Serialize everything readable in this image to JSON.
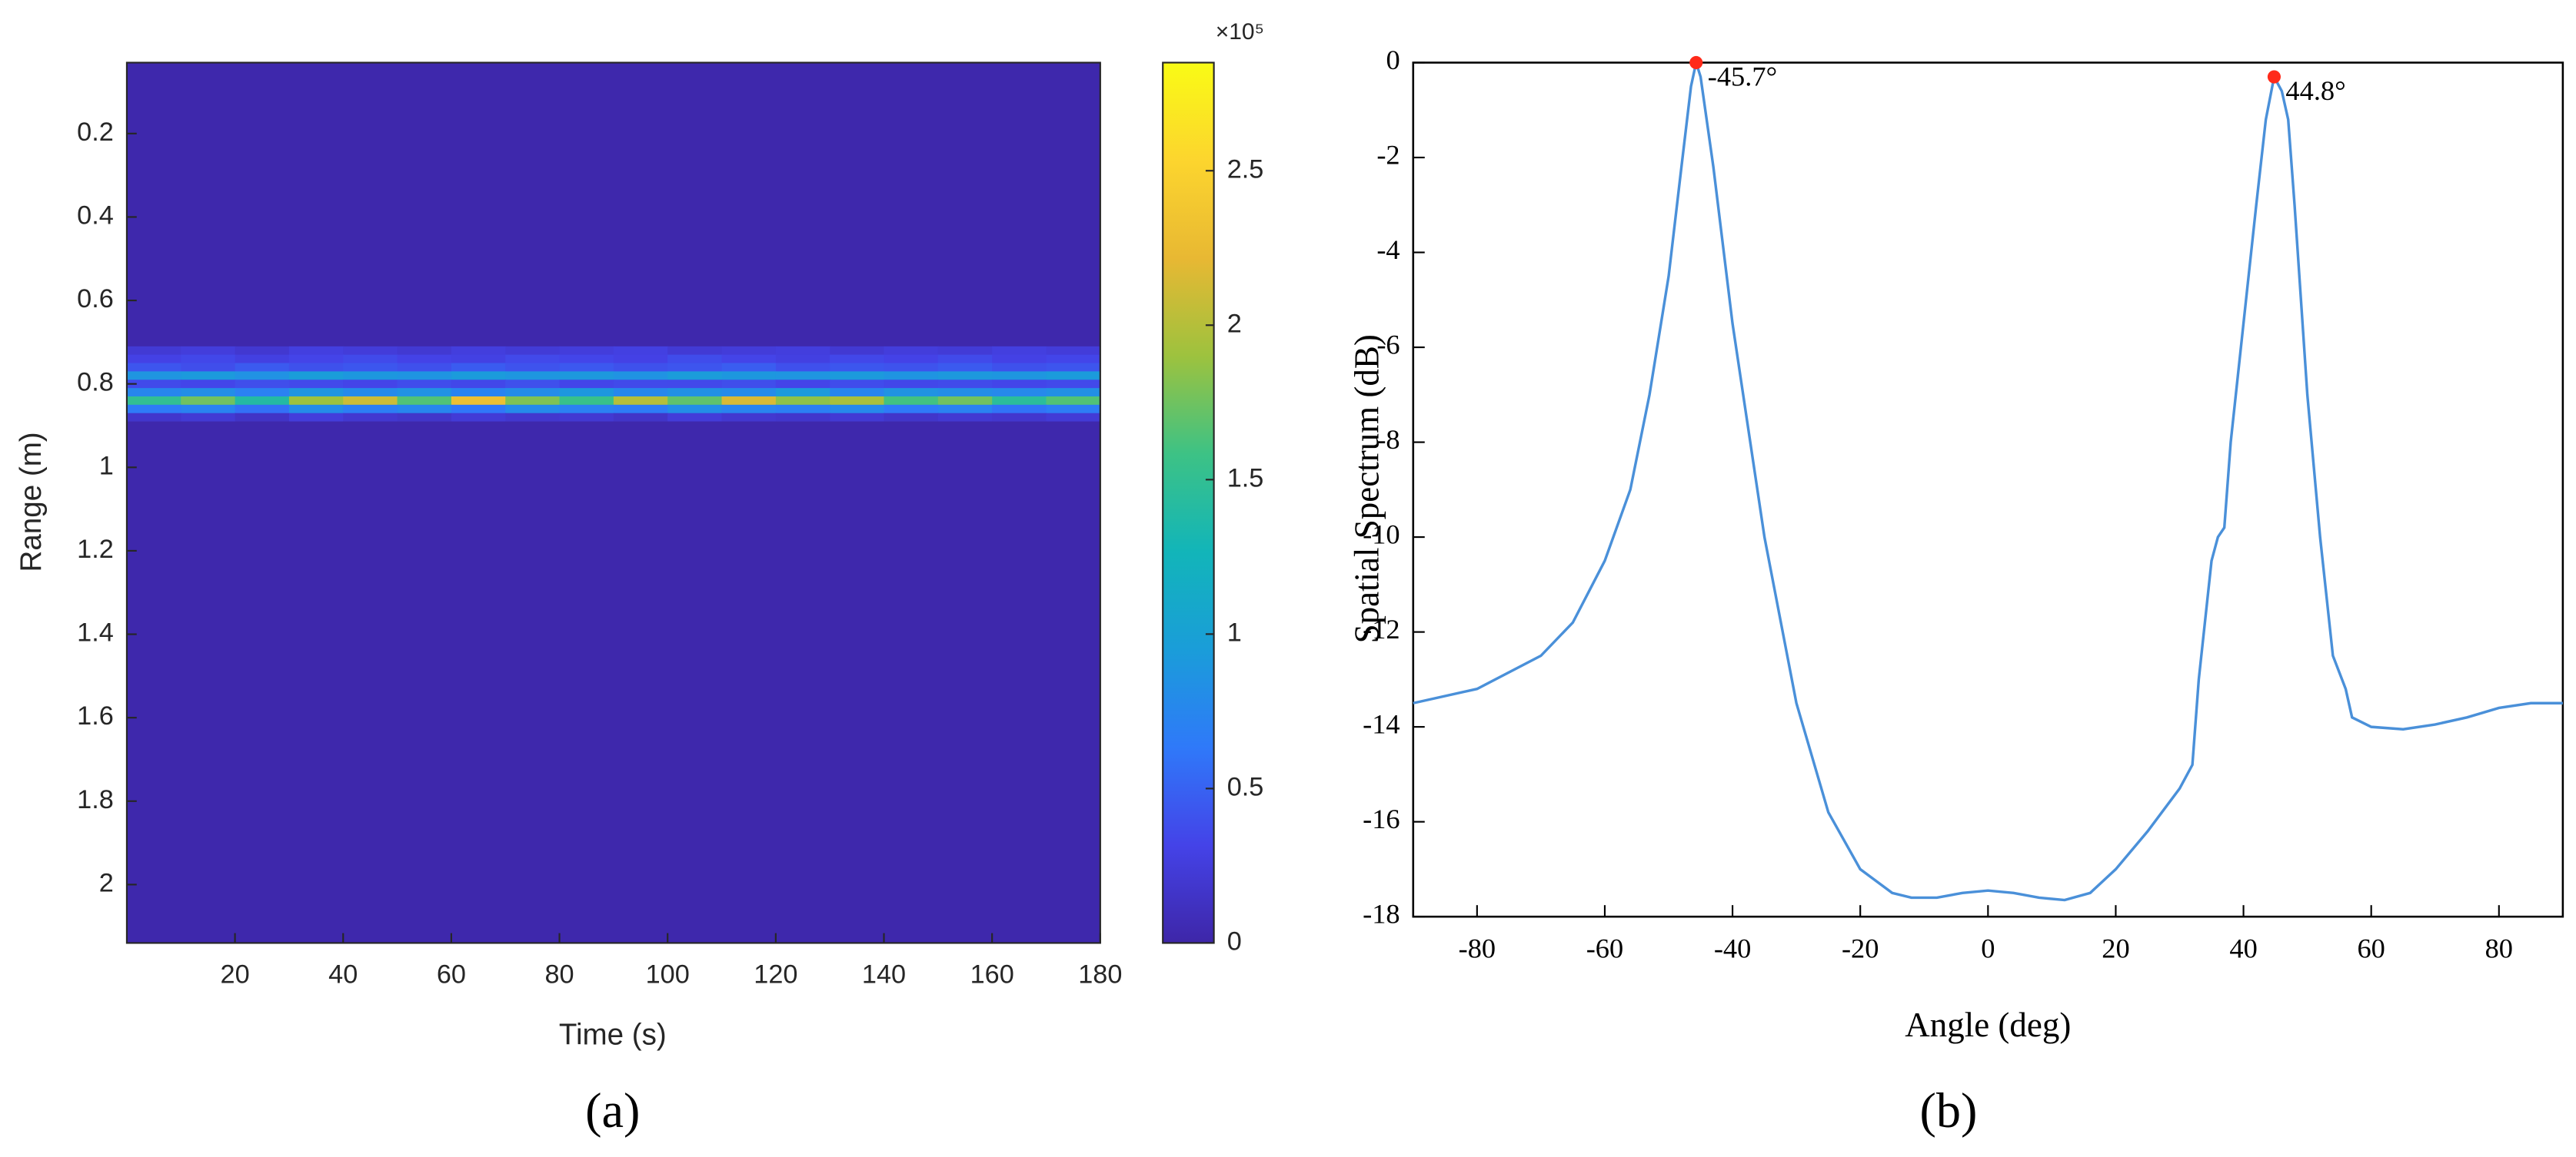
{
  "chart_data": [
    {
      "type": "heatmap",
      "xlabel": "Time (s)",
      "ylabel": "Range (m)",
      "caption": "(a)",
      "x_edges": [
        0,
        10,
        20,
        30,
        40,
        50,
        60,
        70,
        80,
        90,
        100,
        110,
        120,
        130,
        140,
        150,
        160,
        170,
        180
      ],
      "y_edges": [
        0.03,
        0.71,
        0.73,
        0.75,
        0.77,
        0.79,
        0.81,
        0.83,
        0.85,
        0.87,
        0.89,
        2.14
      ],
      "z": [
        [
          2000,
          2000,
          2000,
          2000,
          2000,
          2000,
          2000,
          2000,
          2000,
          2000,
          2000,
          2000,
          2000,
          2000,
          2000,
          2000,
          2000,
          2000
        ],
        [
          22000,
          25000,
          20000,
          27000,
          24000,
          21000,
          26000,
          23000,
          25000,
          28000,
          22000,
          24000,
          26000,
          21000,
          25000,
          23000,
          27000,
          24000
        ],
        [
          30000,
          34000,
          28000,
          32000,
          36000,
          31000,
          29000,
          35000,
          33000,
          30000,
          37000,
          32000,
          28000,
          34000,
          31000,
          36000,
          30000,
          33000
        ],
        [
          42000,
          38000,
          45000,
          40000,
          43000,
          39000,
          46000,
          41000,
          44000,
          40000,
          42000,
          47000,
          39000,
          43000,
          41000,
          45000,
          40000,
          42000
        ],
        [
          88000,
          92000,
          85000,
          95000,
          90000,
          87000,
          93000,
          89000,
          91000,
          86000,
          94000,
          90000,
          88000,
          92000,
          87000,
          91000,
          89000,
          93000
        ],
        [
          36000,
          33000,
          38000,
          35000,
          32000,
          37000,
          34000,
          39000,
          33000,
          36000,
          35000,
          38000,
          32000,
          37000,
          34000,
          36000,
          33000,
          35000
        ],
        [
          75000,
          82000,
          70000,
          88000,
          78000,
          85000,
          72000,
          80000,
          90000,
          76000,
          84000,
          79000,
          92000,
          74000,
          86000,
          81000,
          77000,
          83000
        ],
        [
          150000,
          175000,
          140000,
          190000,
          210000,
          165000,
          230000,
          180000,
          155000,
          200000,
          170000,
          215000,
          185000,
          195000,
          160000,
          175000,
          145000,
          165000
        ],
        [
          65000,
          72000,
          58000,
          80000,
          68000,
          75000,
          62000,
          78000,
          70000,
          66000,
          82000,
          73000,
          69000,
          77000,
          64000,
          71000,
          60000,
          67000
        ],
        [
          18000,
          22000,
          15000,
          25000,
          20000,
          17000,
          23000,
          19000,
          21000,
          16000,
          24000,
          20000,
          18000,
          22000,
          17000,
          21000,
          19000,
          23000
        ],
        [
          2000,
          2000,
          2000,
          2000,
          2000,
          2000,
          2000,
          2000,
          2000,
          2000,
          2000,
          2000,
          2000,
          2000,
          2000,
          2000,
          2000,
          2000
        ]
      ],
      "xlim": [
        0,
        180
      ],
      "xticks": [
        20,
        40,
        60,
        80,
        100,
        120,
        140,
        160,
        180
      ],
      "ylim": [
        0.03,
        2.14
      ],
      "y_direction": "reverse",
      "yticks": [
        0.2,
        0.4,
        0.6,
        0.8,
        1,
        1.2,
        1.4,
        1.6,
        1.8,
        2
      ],
      "zlim": [
        0,
        285000
      ],
      "colorbar_ticks": [
        0,
        {
          "value": 50000,
          "label": "0.5"
        },
        {
          "value": 100000,
          "label": "1"
        },
        {
          "value": 150000,
          "label": "1.5"
        },
        {
          "value": 200000,
          "label": "2"
        },
        {
          "value": 250000,
          "label": "2.5"
        }
      ],
      "colorbar_exponent": "×10⁵",
      "colormap": [
        "#3e26a8",
        "#4443e8",
        "#2f79f9",
        "#1a9dd9",
        "#12b5b9",
        "#3dc285",
        "#9dc23e",
        "#e8b833",
        "#fcd52e",
        "#f9fb15"
      ]
    },
    {
      "type": "line",
      "xlabel": "Angle (deg)",
      "ylabel": "Spatial Spectrum (dB)",
      "caption": "(b)",
      "x": [
        -90,
        -80,
        -70,
        -65,
        -60,
        -56,
        -53,
        -50,
        -48,
        -46.5,
        -45.7,
        -45,
        -43,
        -40,
        -35,
        -30,
        -25,
        -20,
        -15,
        -12,
        -8,
        -4,
        0,
        4,
        8,
        12,
        16,
        20,
        25,
        30,
        32,
        33,
        35,
        36,
        37,
        38,
        40,
        42,
        43.5,
        44.8,
        46,
        47,
        48,
        50,
        52,
        54,
        56,
        57,
        60,
        65,
        70,
        75,
        80,
        85,
        90
      ],
      "values": [
        -13.5,
        -13.2,
        -12.5,
        -11.8,
        -10.5,
        -9,
        -7,
        -4.5,
        -2.2,
        -0.5,
        0,
        -0.3,
        -2.2,
        -5.5,
        -10,
        -13.5,
        -15.8,
        -17,
        -17.5,
        -17.6,
        -17.6,
        -17.5,
        -17.45,
        -17.5,
        -17.6,
        -17.65,
        -17.5,
        -17,
        -16.2,
        -15.3,
        -14.8,
        -13,
        -10.5,
        -10,
        -9.8,
        -8,
        -5.5,
        -3,
        -1.2,
        -0.3,
        -0.6,
        -1.2,
        -3,
        -7,
        -10,
        -12.5,
        -13.2,
        -13.8,
        -14,
        -14.05,
        -13.95,
        -13.8,
        -13.6,
        -13.5,
        -13.5
      ],
      "color": "#4a90d9",
      "peaks": {
        "x": [
          -45.7,
          44.8
        ],
        "values": [
          0,
          -0.3
        ],
        "labels": [
          "-45.7°",
          "44.8°"
        ],
        "color": "#ff2a1a"
      },
      "xlim": [
        -90,
        90
      ],
      "xticks": [
        -80,
        -60,
        -40,
        -20,
        0,
        20,
        40,
        60,
        80
      ],
      "ylim": [
        -18,
        0
      ],
      "yticks": [
        0,
        -2,
        -4,
        -6,
        -8,
        -10,
        -12,
        -14,
        -16,
        -18
      ]
    }
  ]
}
